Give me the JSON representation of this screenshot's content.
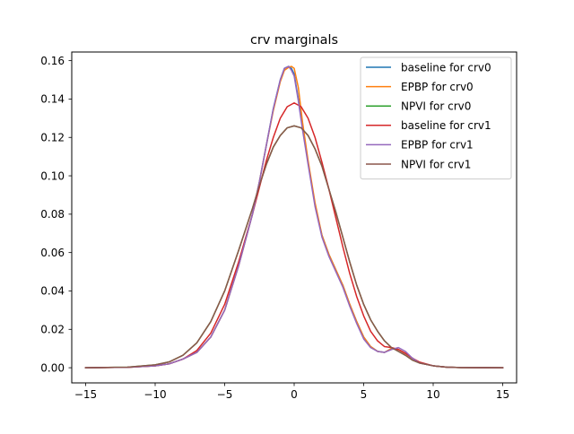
{
  "chart_data": {
    "type": "line",
    "title": "crv marginals",
    "xlabel": "",
    "ylabel": "",
    "xlim": [
      -16,
      16
    ],
    "ylim": [
      -0.0079,
      0.1645
    ],
    "xticks": [
      -15,
      -10,
      -5,
      0,
      5,
      10,
      15
    ],
    "yticks": [
      0.0,
      0.02,
      0.04,
      0.06,
      0.08,
      0.1,
      0.12,
      0.14,
      0.16
    ],
    "xtick_labels": [
      "−15",
      "−10",
      "−5",
      "0",
      "5",
      "10",
      "15"
    ],
    "ytick_labels": [
      "0.00",
      "0.02",
      "0.04",
      "0.06",
      "0.08",
      "0.10",
      "0.12",
      "0.14",
      "0.16"
    ],
    "grid": false,
    "legend_position": "upper right",
    "series": [
      {
        "name": "baseline for crv0",
        "color": "#1f77b4",
        "x": [
          -15,
          -12,
          -10,
          -9,
          -8,
          -7,
          -6,
          -5,
          -4,
          -3,
          -2.5,
          -2,
          -1.5,
          -1,
          -0.7,
          -0.4,
          -0.2,
          0,
          0.3,
          0.6,
          1,
          1.5,
          2,
          2.5,
          3,
          3.5,
          4,
          4.5,
          5,
          5.5,
          6,
          6.5,
          7,
          7.5,
          8,
          8.5,
          9,
          10,
          11,
          12,
          15
        ],
        "y": [
          0,
          0.0002,
          0.001,
          0.002,
          0.0045,
          0.008,
          0.016,
          0.03,
          0.053,
          0.08,
          0.097,
          0.116,
          0.135,
          0.15,
          0.156,
          0.157,
          0.156,
          0.153,
          0.14,
          0.125,
          0.107,
          0.085,
          0.069,
          0.059,
          0.051,
          0.043,
          0.033,
          0.024,
          0.016,
          0.011,
          0.0085,
          0.008,
          0.01,
          0.0095,
          0.0075,
          0.005,
          0.0025,
          0.001,
          0.0003,
          0.0001,
          0
        ]
      },
      {
        "name": "EPBP for crv0",
        "color": "#ff7f0e",
        "x": [
          -15,
          -12,
          -10,
          -9,
          -8,
          -7,
          -6,
          -5,
          -4,
          -3,
          -2.5,
          -2,
          -1.5,
          -1,
          -0.7,
          -0.4,
          -0.2,
          0,
          0.3,
          0.6,
          1,
          1.5,
          2,
          2.5,
          3,
          3.5,
          4,
          4.5,
          5,
          5.5,
          6,
          6.5,
          7,
          7.5,
          8,
          8.5,
          9,
          10,
          11,
          12,
          15
        ],
        "y": [
          0,
          0.0002,
          0.001,
          0.002,
          0.0045,
          0.008,
          0.016,
          0.03,
          0.053,
          0.08,
          0.097,
          0.116,
          0.134,
          0.149,
          0.155,
          0.1565,
          0.157,
          0.156,
          0.146,
          0.128,
          0.108,
          0.086,
          0.069,
          0.059,
          0.051,
          0.043,
          0.033,
          0.024,
          0.016,
          0.011,
          0.0085,
          0.008,
          0.01,
          0.0095,
          0.0075,
          0.005,
          0.0025,
          0.001,
          0.0003,
          0.0001,
          0
        ]
      },
      {
        "name": "NPVI for crv0",
        "color": "#2ca02c",
        "x": [
          -15,
          -12,
          -10,
          -9,
          -8,
          -7,
          -6,
          -5,
          -4,
          -3,
          -2.5,
          -2,
          -1.5,
          -1,
          -0.5,
          0,
          0.5,
          1,
          1.5,
          2,
          2.5,
          3,
          3.5,
          4,
          4.5,
          5,
          5.5,
          6,
          6.5,
          7,
          7.5,
          8,
          8.5,
          9,
          10,
          11,
          12,
          15
        ],
        "y": [
          0,
          0.0003,
          0.0015,
          0.003,
          0.0065,
          0.013,
          0.024,
          0.04,
          0.061,
          0.083,
          0.095,
          0.106,
          0.115,
          0.121,
          0.125,
          0.126,
          0.125,
          0.121,
          0.114,
          0.105,
          0.093,
          0.081,
          0.068,
          0.055,
          0.043,
          0.033,
          0.025,
          0.019,
          0.014,
          0.0105,
          0.0085,
          0.0065,
          0.004,
          0.0025,
          0.001,
          0.0003,
          0.0001,
          0
        ]
      },
      {
        "name": "baseline for crv1",
        "color": "#d62728",
        "x": [
          -15,
          -12,
          -10,
          -9,
          -8,
          -7,
          -6,
          -5,
          -4,
          -3,
          -2.5,
          -2,
          -1.5,
          -1,
          -0.5,
          0,
          0.5,
          1,
          1.5,
          2,
          2.5,
          3,
          3.5,
          4,
          4.5,
          5,
          5.5,
          6,
          6.5,
          7,
          7.5,
          8,
          8.5,
          9,
          10,
          11,
          12,
          15
        ],
        "y": [
          0,
          0.0002,
          0.001,
          0.002,
          0.0045,
          0.009,
          0.018,
          0.033,
          0.055,
          0.08,
          0.094,
          0.108,
          0.12,
          0.13,
          0.136,
          0.138,
          0.136,
          0.13,
          0.12,
          0.107,
          0.093,
          0.078,
          0.063,
          0.049,
          0.037,
          0.027,
          0.019,
          0.014,
          0.011,
          0.0105,
          0.0095,
          0.0075,
          0.005,
          0.003,
          0.001,
          0.0003,
          0.0001,
          0
        ]
      },
      {
        "name": "EPBP for crv1",
        "color": "#9467bd",
        "x": [
          -15,
          -12,
          -10,
          -9,
          -8,
          -7,
          -6,
          -5,
          -4,
          -3,
          -2.5,
          -2,
          -1.5,
          -1,
          -0.7,
          -0.4,
          -0.2,
          0,
          0.3,
          0.6,
          1,
          1.5,
          2,
          2.5,
          3,
          3.5,
          4,
          4.5,
          5,
          5.5,
          6,
          6.5,
          7,
          7.5,
          8,
          8.5,
          9,
          10,
          11,
          12,
          15
        ],
        "y": [
          0,
          0.0002,
          0.001,
          0.002,
          0.0045,
          0.008,
          0.016,
          0.03,
          0.053,
          0.08,
          0.097,
          0.116,
          0.135,
          0.15,
          0.156,
          0.157,
          0.155,
          0.152,
          0.139,
          0.124,
          0.106,
          0.084,
          0.068,
          0.058,
          0.05,
          0.042,
          0.032,
          0.023,
          0.015,
          0.0105,
          0.0085,
          0.008,
          0.0095,
          0.0105,
          0.0085,
          0.005,
          0.0025,
          0.001,
          0.0003,
          0.0001,
          0
        ]
      },
      {
        "name": "NPVI for crv1",
        "color": "#8c564b",
        "x": [
          -15,
          -12,
          -10,
          -9,
          -8,
          -7,
          -6,
          -5,
          -4,
          -3,
          -2.5,
          -2,
          -1.5,
          -1,
          -0.5,
          0,
          0.5,
          1,
          1.5,
          2,
          2.5,
          3,
          3.5,
          4,
          4.5,
          5,
          5.5,
          6,
          6.5,
          7,
          7.5,
          8,
          8.5,
          9,
          10,
          11,
          12,
          15
        ],
        "y": [
          0,
          0.0003,
          0.0015,
          0.003,
          0.0065,
          0.013,
          0.024,
          0.04,
          0.061,
          0.083,
          0.095,
          0.106,
          0.115,
          0.121,
          0.125,
          0.126,
          0.125,
          0.121,
          0.114,
          0.105,
          0.093,
          0.081,
          0.068,
          0.055,
          0.043,
          0.033,
          0.025,
          0.019,
          0.014,
          0.0105,
          0.0085,
          0.0065,
          0.004,
          0.0025,
          0.001,
          0.0003,
          0.0001,
          0
        ]
      }
    ]
  }
}
